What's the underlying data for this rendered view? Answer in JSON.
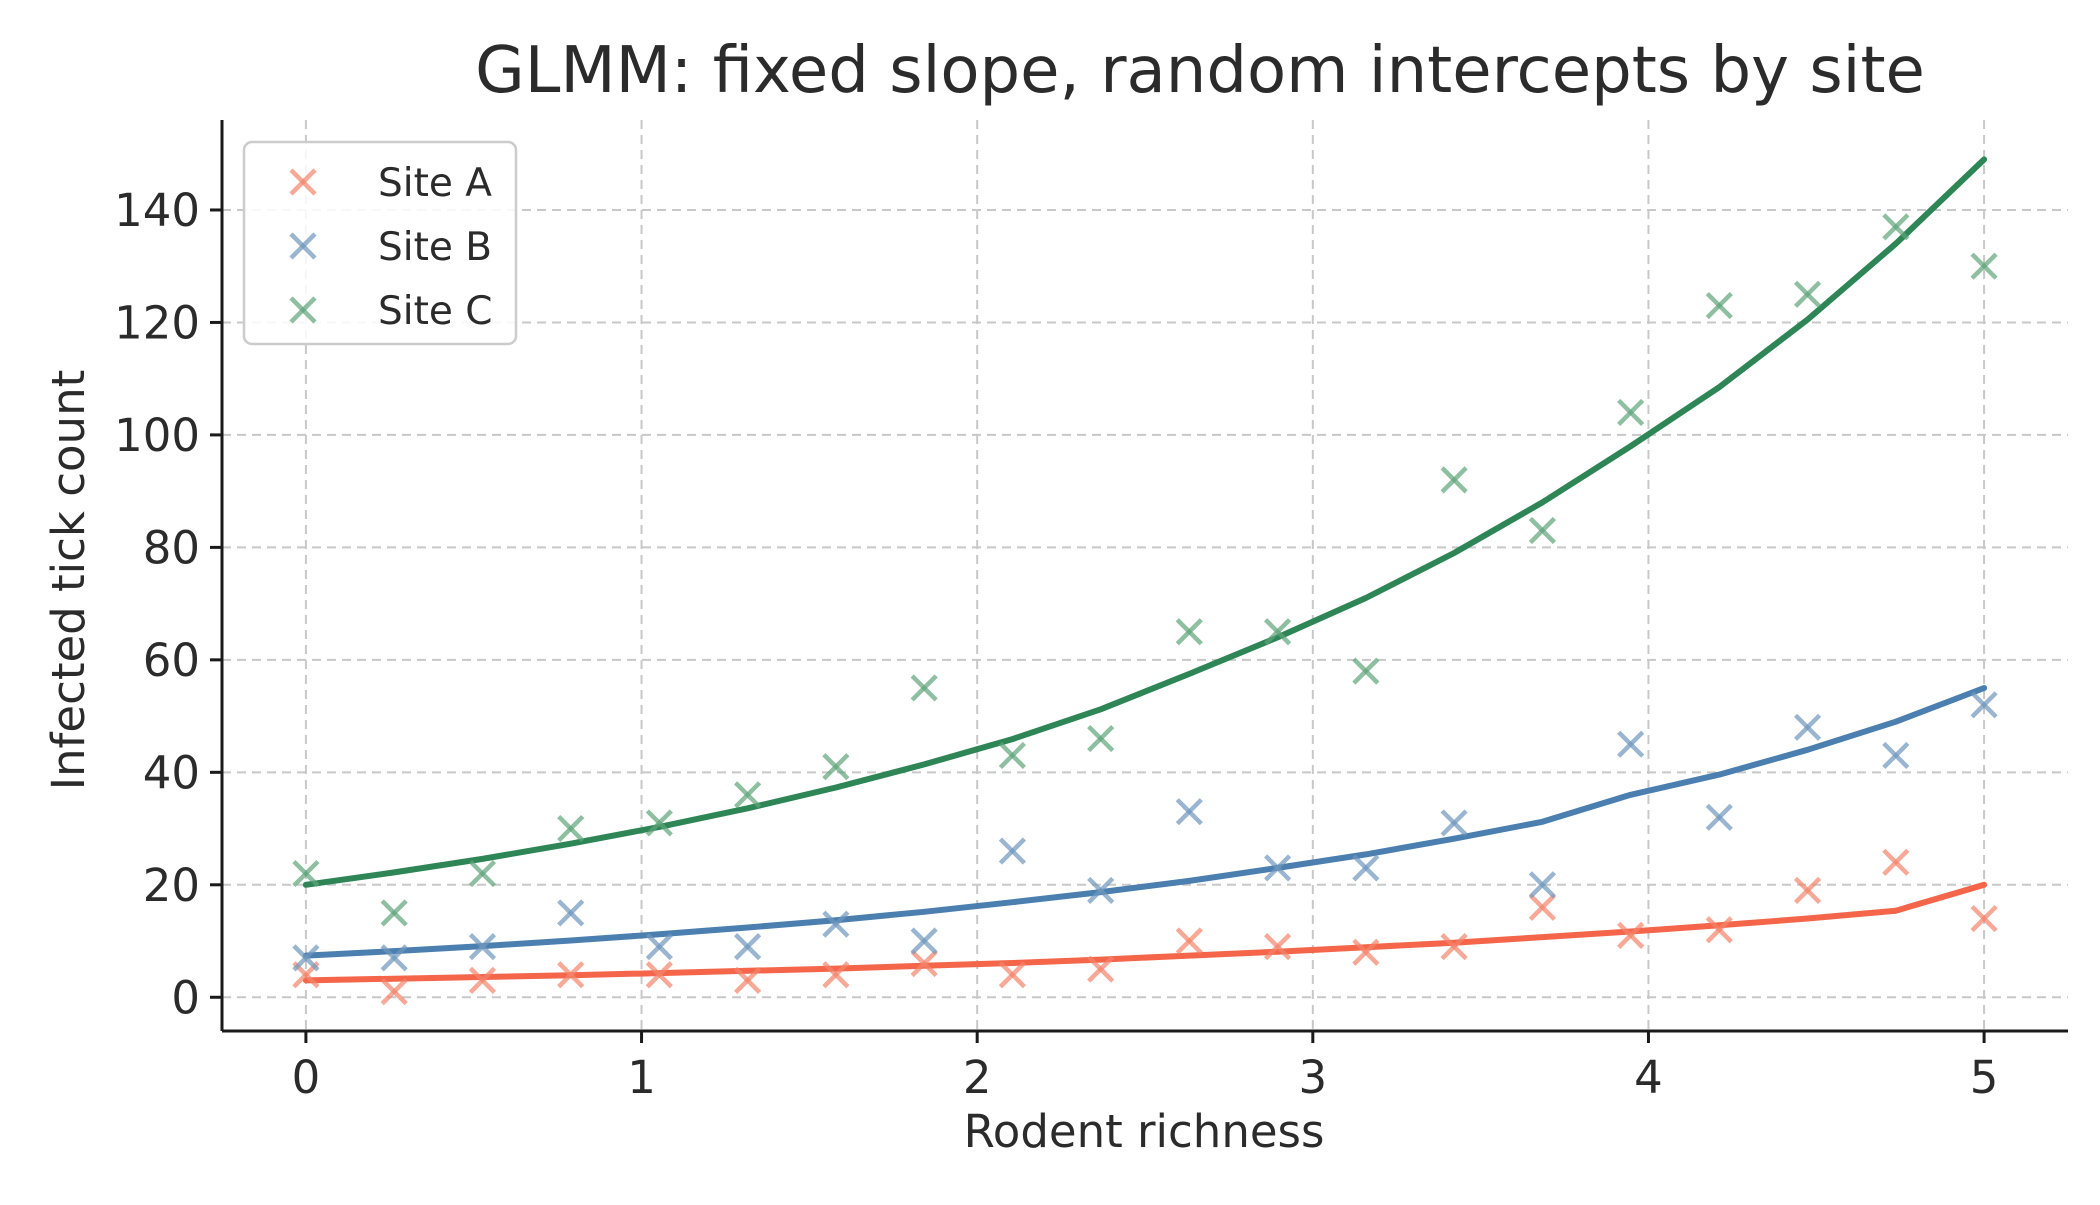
{
  "chart_data": {
    "type": "scatter",
    "title": "GLMM: fixed slope, random intercepts by site",
    "xlabel": "Rodent richness",
    "ylabel": "Infected tick count",
    "xlim": [
      -0.25,
      5.25
    ],
    "ylim": [
      -6,
      156
    ],
    "xticks": [
      0,
      1,
      2,
      3,
      4,
      5
    ],
    "yticks": [
      0,
      20,
      40,
      60,
      80,
      100,
      120,
      140
    ],
    "grid": true,
    "legend_position": "top-left",
    "x": [
      0,
      0.263,
      0.526,
      0.789,
      1.053,
      1.316,
      1.579,
      1.842,
      2.105,
      2.368,
      2.632,
      2.895,
      3.158,
      3.421,
      3.684,
      3.947,
      4.211,
      4.474,
      4.737,
      5
    ],
    "series": [
      {
        "name": "Site A",
        "color": "#f4846a",
        "line_color": "#f4654a",
        "marker": "x",
        "points": [
          4,
          1,
          3,
          4,
          4,
          3,
          4,
          6,
          4,
          5,
          10,
          9,
          8,
          9,
          16,
          11,
          12,
          19,
          24,
          14
        ],
        "fit": [
          3,
          3.3,
          3.6,
          3.9,
          4.3,
          4.7,
          5.1,
          5.6,
          6.1,
          6.7,
          7.4,
          8.1,
          8.9,
          9.7,
          10.7,
          11.7,
          12.8,
          14.0,
          15.4,
          20
        ]
      },
      {
        "name": "Site B",
        "color": "#6f97bd",
        "line_color": "#4a7fb0",
        "marker": "x",
        "points": [
          7,
          7,
          9,
          15,
          9,
          9,
          13,
          10,
          26,
          19,
          33,
          23,
          23,
          31,
          20,
          45,
          32,
          48,
          43,
          52
        ],
        "fit": [
          7.4,
          8.2,
          9.1,
          10.1,
          11.2,
          12.4,
          13.7,
          15.2,
          16.9,
          18.7,
          20.7,
          23.0,
          25.4,
          28.2,
          31.2,
          36.0,
          39.6,
          44.0,
          49.0,
          55
        ]
      },
      {
        "name": "Site C",
        "color": "#5fa47a",
        "line_color": "#2e8656",
        "marker": "x",
        "points": [
          22,
          15,
          22,
          30,
          31,
          36,
          41,
          55,
          43,
          46,
          65,
          65,
          58,
          92,
          83,
          104,
          123,
          125,
          137,
          130
        ],
        "fit": [
          20,
          22.2,
          24.6,
          27.3,
          30.3,
          33.6,
          37.3,
          41.4,
          45.9,
          51.2,
          57.5,
          64.0,
          71.0,
          79.0,
          88.0,
          98.0,
          108.5,
          120.5,
          134.0,
          149
        ]
      }
    ]
  }
}
